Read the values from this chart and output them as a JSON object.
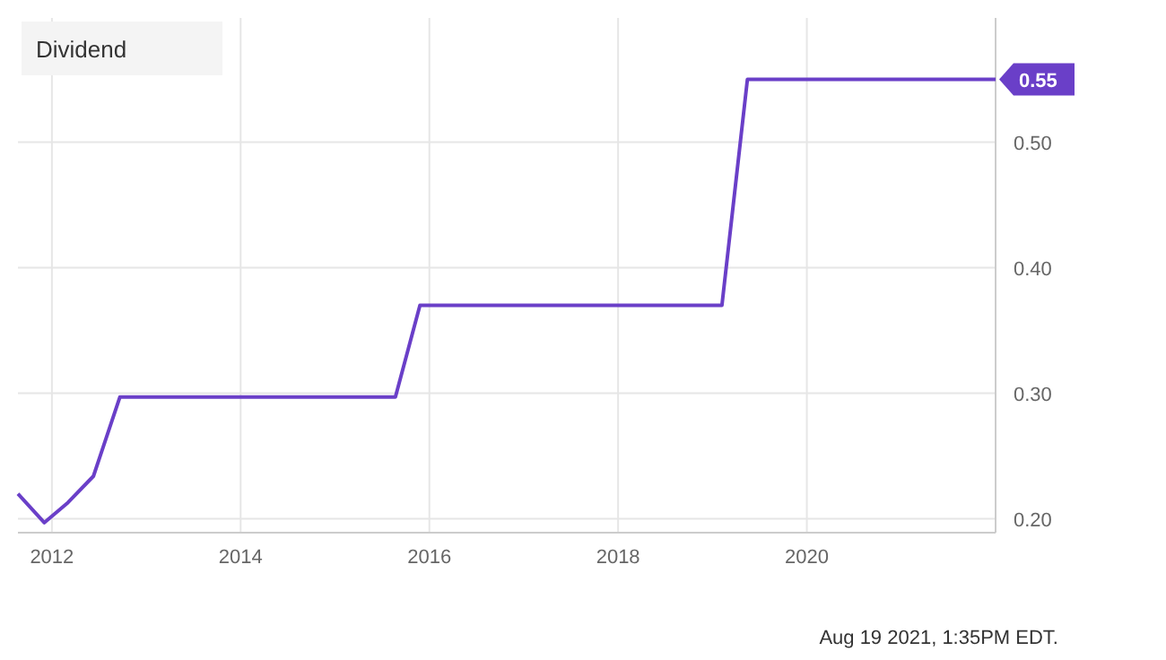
{
  "chart_data": {
    "type": "line",
    "title": "Dividend",
    "x": [
      2011.64,
      2011.92,
      2012.17,
      2012.44,
      2012.72,
      2015.64,
      2015.9,
      2019.1,
      2019.37,
      2022.0
    ],
    "series": [
      {
        "color": "#6a3fc8",
        "values": [
          0.22,
          0.197,
          0.213,
          0.234,
          0.297,
          0.297,
          0.37,
          0.37,
          0.55,
          0.55
        ]
      }
    ],
    "xlim": [
      2011.64,
      2022.0
    ],
    "xticks": [
      2012,
      2014,
      2016,
      2018,
      2020
    ],
    "ylim": [
      0.189,
      0.599
    ],
    "yticks": [
      {
        "value": 0.2,
        "label": "0.20"
      },
      {
        "value": 0.3,
        "label": "0.30"
      },
      {
        "value": 0.4,
        "label": "0.40"
      },
      {
        "value": 0.5,
        "label": "0.50"
      }
    ],
    "grid": true,
    "marker": "none",
    "line_style": "solid",
    "annotations": [
      {
        "text": "0.55",
        "x": 2022.0,
        "y": 0.55
      },
      "Aug 19 2021, 1:35PM EDT."
    ]
  }
}
